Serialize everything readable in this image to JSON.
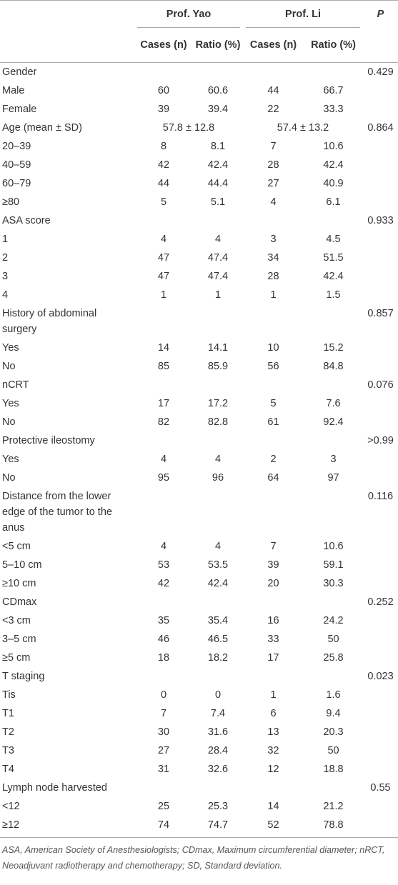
{
  "header": {
    "group1": "Prof. Yao",
    "group2": "Prof. Li",
    "p": "P",
    "sub": [
      "Cases (n)",
      "Ratio (%)",
      "Cases (n)",
      "Ratio (%)"
    ]
  },
  "table": {
    "rows": [
      {
        "label": "Gender",
        "p": "0.429"
      },
      {
        "label": "Male",
        "cells": [
          "60",
          "60.6",
          "44",
          "66.7"
        ]
      },
      {
        "label": "Female",
        "cells": [
          "39",
          "39.4",
          "22",
          "33.3"
        ]
      },
      {
        "label": "Age (mean ± SD)",
        "spans": [
          "57.8 ± 12.8",
          "57.4 ± 13.2"
        ],
        "p": "0.864"
      },
      {
        "label": "20–39",
        "cells": [
          "8",
          "8.1",
          "7",
          "10.6"
        ]
      },
      {
        "label": "40–59",
        "cells": [
          "42",
          "42.4",
          "28",
          "42.4"
        ]
      },
      {
        "label": "60–79",
        "cells": [
          "44",
          "44.4",
          "27",
          "40.9"
        ]
      },
      {
        "label": "≥80",
        "cells": [
          "5",
          "5.1",
          "4",
          "6.1"
        ]
      },
      {
        "label": "ASA score",
        "p": "0.933"
      },
      {
        "label": "1",
        "cells": [
          "4",
          "4",
          "3",
          "4.5"
        ]
      },
      {
        "label": "2",
        "cells": [
          "47",
          "47.4",
          "34",
          "51.5"
        ]
      },
      {
        "label": "3",
        "cells": [
          "47",
          "47.4",
          "28",
          "42.4"
        ]
      },
      {
        "label": "4",
        "cells": [
          "1",
          "1",
          "1",
          "1.5"
        ]
      },
      {
        "label": "History of abdominal surgery",
        "p": "0.857"
      },
      {
        "label": "Yes",
        "cells": [
          "14",
          "14.1",
          "10",
          "15.2"
        ]
      },
      {
        "label": "No",
        "cells": [
          "85",
          "85.9",
          "56",
          "84.8"
        ]
      },
      {
        "label": "nCRT",
        "p": "0.076"
      },
      {
        "label": "Yes",
        "cells": [
          "17",
          "17.2",
          "5",
          "7.6"
        ]
      },
      {
        "label": "No",
        "cells": [
          "82",
          "82.8",
          "61",
          "92.4"
        ]
      },
      {
        "label": "Protective ileostomy",
        "p": ">0.99"
      },
      {
        "label": "Yes",
        "cells": [
          "4",
          "4",
          "2",
          "3"
        ]
      },
      {
        "label": "No",
        "cells": [
          "95",
          "96",
          "64",
          "97"
        ]
      },
      {
        "label": "Distance from the lower edge of the tumor to the anus",
        "p": "0.116"
      },
      {
        "label": "<5 cm",
        "cells": [
          "4",
          "4",
          "7",
          "10.6"
        ]
      },
      {
        "label": "5–10 cm",
        "cells": [
          "53",
          "53.5",
          "39",
          "59.1"
        ]
      },
      {
        "label": "≥10 cm",
        "cells": [
          "42",
          "42.4",
          "20",
          "30.3"
        ]
      },
      {
        "label": "CDmax",
        "p": "0.252"
      },
      {
        "label": "<3 cm",
        "cells": [
          "35",
          "35.4",
          "16",
          "24.2"
        ]
      },
      {
        "label": "3–5 cm",
        "cells": [
          "46",
          "46.5",
          "33",
          "50"
        ]
      },
      {
        "label": "≥5 cm",
        "cells": [
          "18",
          "18.2",
          "17",
          "25.8"
        ]
      },
      {
        "label": "T staging",
        "p": "0.023"
      },
      {
        "label": "Tis",
        "cells": [
          "0",
          "0",
          "1",
          "1.6"
        ]
      },
      {
        "label": "T1",
        "cells": [
          "7",
          "7.4",
          "6",
          "9.4"
        ]
      },
      {
        "label": "T2",
        "cells": [
          "30",
          "31.6",
          "13",
          "20.3"
        ]
      },
      {
        "label": "T3",
        "cells": [
          "27",
          "28.4",
          "32",
          "50"
        ]
      },
      {
        "label": "T4",
        "cells": [
          "31",
          "32.6",
          "12",
          "18.8"
        ]
      },
      {
        "label": "Lymph node harvested",
        "p": "0.55"
      },
      {
        "label": "<12",
        "cells": [
          "25",
          "25.3",
          "14",
          "21.2"
        ]
      },
      {
        "label": "≥12",
        "cells": [
          "74",
          "74.7",
          "52",
          "78.8"
        ]
      }
    ]
  },
  "footnote": "ASA, American Society of Anesthesiologists; CDmax, Maximum circumferential diameter; nRCT, Neoadjuvant radiotherapy and chemotherapy; SD, Standard deviation."
}
